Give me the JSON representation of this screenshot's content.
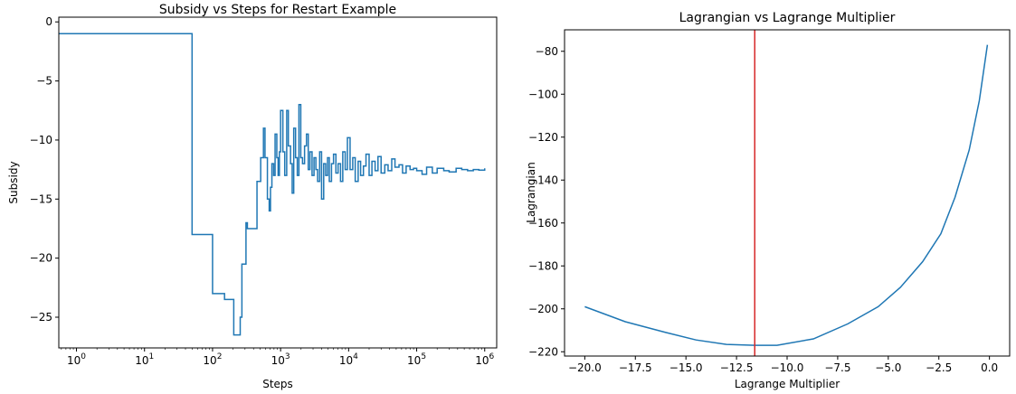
{
  "colors": {
    "series": "#1f77b4",
    "marker_line": "#d62728",
    "axes": "#000000"
  },
  "chart_data": [
    {
      "type": "line",
      "title": "Subsidy vs Steps for Restart Example",
      "xlabel": "Steps",
      "ylabel": "Subsidy",
      "xscale": "log",
      "xlim": [
        0.55,
        1500000
      ],
      "ylim": [
        -27.6,
        0.4
      ],
      "xticks": [
        1,
        10,
        100,
        1000,
        10000,
        100000,
        1000000
      ],
      "xtick_labels": [
        {
          "base": "10",
          "exp": "0"
        },
        {
          "base": "10",
          "exp": "1"
        },
        {
          "base": "10",
          "exp": "2"
        },
        {
          "base": "10",
          "exp": "3"
        },
        {
          "base": "10",
          "exp": "4"
        },
        {
          "base": "10",
          "exp": "5"
        },
        {
          "base": "10",
          "exp": "6"
        }
      ],
      "yticks": [
        0,
        -5,
        -10,
        -15,
        -20,
        -25
      ],
      "ytick_labels": [
        "0",
        "−5",
        "−10",
        "−15",
        "−20",
        "−25"
      ],
      "grid": false,
      "series": [
        {
          "steps": "post",
          "x": [
            0.55,
            48,
            50,
            95,
            100,
            140,
            150,
            195,
            205,
            255,
            270,
            310,
            325,
            355,
            390,
            450,
            510,
            560,
            590,
            640,
            680,
            710,
            745,
            790,
            830,
            880,
            920,
            960,
            1000,
            1080,
            1150,
            1230,
            1300,
            1400,
            1480,
            1560,
            1660,
            1760,
            1860,
            1980,
            2100,
            2250,
            2400,
            2550,
            2700,
            2900,
            3100,
            3300,
            3500,
            3750,
            4000,
            4300,
            4600,
            4900,
            5200,
            5600,
            6000,
            6500,
            7000,
            7600,
            8200,
            8900,
            9600,
            10500,
            11500,
            12500,
            13800,
            15000,
            16500,
            18000,
            20000,
            22000,
            24500,
            27000,
            30000,
            34000,
            38000,
            43000,
            48000,
            55000,
            62000,
            70000,
            80000,
            90000,
            100000,
            120000,
            140000,
            170000,
            200000,
            250000,
            300000,
            380000,
            460000,
            560000,
            680000,
            820000,
            1000000
          ],
          "y": [
            -1,
            -1,
            -18,
            -18,
            -23,
            -23,
            -23.5,
            -23.5,
            -26.5,
            -25,
            -20.5,
            -17,
            -17.5,
            -17.5,
            -17.5,
            -13.5,
            -11.5,
            -9,
            -11.5,
            -15,
            -16,
            -14,
            -12,
            -13,
            -9.5,
            -11.5,
            -13,
            -11,
            -7.5,
            -11,
            -13,
            -7.5,
            -10.5,
            -12,
            -14.5,
            -9,
            -11.5,
            -13,
            -7,
            -11.5,
            -12,
            -10.5,
            -9.5,
            -12.5,
            -11,
            -13,
            -11.5,
            -12.5,
            -13.5,
            -11,
            -15,
            -12,
            -13,
            -11.5,
            -13.5,
            -12,
            -11.2,
            -12.8,
            -12,
            -13.5,
            -11,
            -12.5,
            -9.8,
            -12.5,
            -11.5,
            -13.5,
            -11.8,
            -13,
            -12.2,
            -11.2,
            -13,
            -11.8,
            -12.6,
            -11.4,
            -12.8,
            -12.1,
            -12.6,
            -11.6,
            -12.3,
            -12.1,
            -12.8,
            -12.2,
            -12.5,
            -12.4,
            -12.6,
            -12.9,
            -12.3,
            -12.8,
            -12.4,
            -12.6,
            -12.7,
            -12.4,
            -12.5,
            -12.6,
            -12.5,
            -12.55,
            -12.4
          ]
        }
      ]
    },
    {
      "type": "line",
      "title": "Lagrangian vs Lagrange Multiplier",
      "xlabel": "Lagrange Multiplier",
      "ylabel": "Lagrangian",
      "xlim": [
        -21.0,
        1.0
      ],
      "ylim": [
        -222,
        -70
      ],
      "xticks": [
        -20.0,
        -17.5,
        -15.0,
        -12.5,
        -10.0,
        -7.5,
        -5.0,
        -2.5,
        0.0
      ],
      "xtick_labels": [
        "−20.0",
        "−17.5",
        "−15.0",
        "−12.5",
        "−10.0",
        "−7.5",
        "−5.0",
        "−2.5",
        "0.0"
      ],
      "yticks": [
        -80,
        -100,
        -120,
        -140,
        -160,
        -180,
        -200,
        -220
      ],
      "ytick_labels": [
        "−80",
        "−100",
        "−120",
        "−140",
        "−160",
        "−180",
        "−200",
        "−220"
      ],
      "grid": false,
      "vline": {
        "x": -11.6
      },
      "series": [
        {
          "x": [
            -20.0,
            -18.0,
            -16.0,
            -14.5,
            -13.0,
            -11.6,
            -10.5,
            -8.7,
            -7.0,
            -5.5,
            -4.4,
            -3.3,
            -2.4,
            -1.7,
            -1.0,
            -0.5,
            -0.1
          ],
          "y": [
            -199,
            -206,
            -211,
            -214.5,
            -216.6,
            -217,
            -217,
            -214,
            -207,
            -199,
            -190,
            -178,
            -165,
            -148,
            -126,
            -103,
            -77
          ]
        }
      ]
    }
  ]
}
